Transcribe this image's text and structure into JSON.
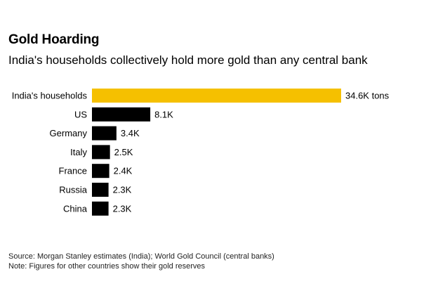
{
  "header": {
    "title": "Gold Hoarding",
    "subtitle": "India's households collectively hold more gold than any central bank"
  },
  "chart_data": {
    "type": "bar",
    "orientation": "horizontal",
    "title": "Gold Hoarding",
    "subtitle": "India's households collectively hold more gold than any central bank",
    "unit": "thousand tons",
    "categories": [
      "India's households",
      "US",
      "Germany",
      "Italy",
      "France",
      "Russia",
      "China"
    ],
    "values": [
      34.6,
      8.1,
      3.4,
      2.5,
      2.4,
      2.3,
      2.3
    ],
    "data_labels": [
      "34.6K tons",
      "8.1K",
      "3.4K",
      "2.5K",
      "2.4K",
      "2.3K",
      "2.3K"
    ],
    "colors": [
      "#F5C000",
      "#000000",
      "#000000",
      "#000000",
      "#000000",
      "#000000",
      "#000000"
    ],
    "xlim": [
      0,
      34.6
    ],
    "grid": false,
    "legend": "none"
  },
  "footer": {
    "source": "Source: Morgan Stanley estimates (India); World Gold Council (central banks)",
    "note": "Note: Figures for other countries show their gold reserves"
  }
}
